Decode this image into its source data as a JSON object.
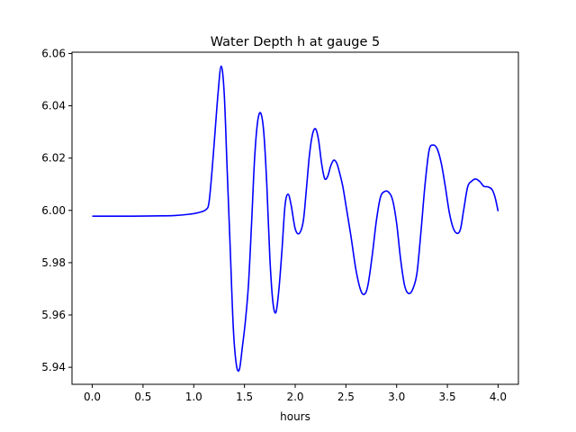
{
  "chart_data": {
    "type": "line",
    "title": "Water Depth h at gauge 5",
    "xlabel": "hours",
    "ylabel": "",
    "xlim": [
      -0.2,
      4.2
    ],
    "ylim": [
      5.9335,
      6.0605
    ],
    "xticks": [
      {
        "value": 0.0,
        "label": "0.0"
      },
      {
        "value": 0.5,
        "label": "0.5"
      },
      {
        "value": 1.0,
        "label": "1.0"
      },
      {
        "value": 1.5,
        "label": "1.5"
      },
      {
        "value": 2.0,
        "label": "2.0"
      },
      {
        "value": 2.5,
        "label": "2.5"
      },
      {
        "value": 3.0,
        "label": "3.0"
      },
      {
        "value": 3.5,
        "label": "3.5"
      },
      {
        "value": 4.0,
        "label": "4.0"
      }
    ],
    "yticks": [
      {
        "value": 5.94,
        "label": "5.94"
      },
      {
        "value": 5.96,
        "label": "5.96"
      },
      {
        "value": 5.98,
        "label": "5.98"
      },
      {
        "value": 6.0,
        "label": "6.00"
      },
      {
        "value": 6.02,
        "label": "6.02"
      },
      {
        "value": 6.04,
        "label": "6.04"
      },
      {
        "value": 6.06,
        "label": "6.06"
      }
    ],
    "grid": false,
    "series": [
      {
        "color": "#0000ff",
        "x": [
          0.0,
          0.2,
          0.4,
          0.6,
          0.8,
          0.95,
          1.05,
          1.12,
          1.15,
          1.18,
          1.21,
          1.24,
          1.27,
          1.3,
          1.33,
          1.36,
          1.39,
          1.42,
          1.45,
          1.48,
          1.51,
          1.54,
          1.57,
          1.6,
          1.63,
          1.66,
          1.69,
          1.72,
          1.75,
          1.78,
          1.81,
          1.84,
          1.87,
          1.9,
          1.93,
          1.96,
          2.0,
          2.04,
          2.08,
          2.11,
          2.14,
          2.17,
          2.2,
          2.23,
          2.26,
          2.29,
          2.32,
          2.35,
          2.38,
          2.41,
          2.44,
          2.47,
          2.5,
          2.55,
          2.6,
          2.65,
          2.69,
          2.72,
          2.76,
          2.8,
          2.84,
          2.88,
          2.92,
          2.96,
          3.0,
          3.04,
          3.08,
          3.12,
          3.16,
          3.2,
          3.24,
          3.28,
          3.32,
          3.36,
          3.4,
          3.44,
          3.48,
          3.52,
          3.56,
          3.6,
          3.63,
          3.66,
          3.7,
          3.74,
          3.78,
          3.82,
          3.86,
          3.9,
          3.94,
          3.97,
          4.0
        ],
        "y": [
          5.9978,
          5.9978,
          5.9978,
          5.9979,
          5.998,
          5.9985,
          5.9992,
          6.0003,
          6.003,
          6.015,
          6.03,
          6.045,
          6.0552,
          6.045,
          6.015,
          5.985,
          5.955,
          5.941,
          5.9392,
          5.948,
          5.958,
          5.972,
          5.995,
          6.02,
          6.034,
          6.0372,
          6.03,
          6.01,
          5.982,
          5.965,
          5.961,
          5.97,
          5.985,
          6.002,
          6.0062,
          6.002,
          5.993,
          5.9912,
          5.996,
          6.008,
          6.021,
          6.029,
          6.0312,
          6.027,
          6.018,
          6.0122,
          6.013,
          6.017,
          6.0192,
          6.018,
          6.014,
          6.009,
          6.002,
          5.99,
          5.977,
          5.969,
          5.9682,
          5.972,
          5.983,
          5.996,
          6.005,
          6.0072,
          6.007,
          6.004,
          5.995,
          5.981,
          5.971,
          5.9682,
          5.97,
          5.976,
          5.992,
          6.01,
          6.023,
          6.025,
          6.0235,
          6.018,
          6.009,
          5.999,
          5.993,
          5.9912,
          5.993,
          6.0,
          6.009,
          6.0112,
          6.012,
          6.011,
          6.0092,
          6.009,
          6.008,
          6.005,
          5.9997
        ]
      }
    ]
  }
}
